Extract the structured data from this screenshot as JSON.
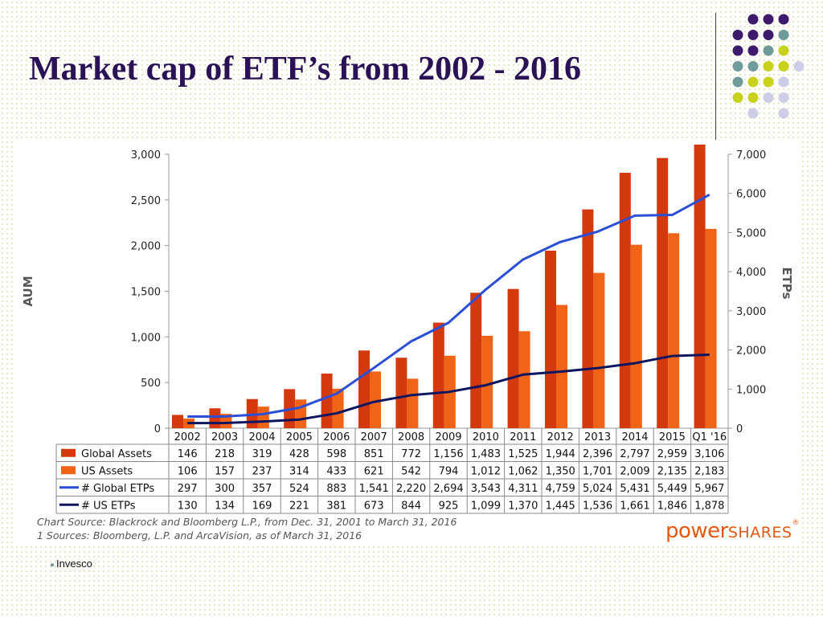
{
  "slide": {
    "title": "Market cap of  ETF’s from 2002 - 2016",
    "footer": "Invesco"
  },
  "source_lines": [
    "Chart Source: Blackrock and Bloomberg L.P., from Dec. 31, 2001 to March 31, 2016",
    "1 Sources: Bloomberg, L.P. and ArcaVision, as of March 31, 2016"
  ],
  "logo": {
    "power": "power",
    "shares": "SHARES",
    "mark": "®"
  },
  "chart_data": {
    "type": "bar",
    "categories": [
      "2002",
      "2003",
      "2004",
      "2005",
      "2006",
      "2007",
      "2008",
      "2009",
      "2010",
      "2011",
      "2012",
      "2013",
      "2014",
      "2015",
      "Q1 '16"
    ],
    "ylabel": "AUM",
    "y2label": "ETPs",
    "ylim": [
      0,
      3000
    ],
    "y2lim": [
      0,
      7000
    ],
    "yticks": [
      0,
      500,
      1000,
      1500,
      2000,
      2500,
      3000
    ],
    "y2ticks": [
      0,
      1000,
      2000,
      3000,
      4000,
      5000,
      6000,
      7000
    ],
    "grid": false,
    "legend": "data-table-below",
    "series": [
      {
        "name": "Global Assets",
        "type": "bar",
        "axis": "left",
        "color": "#d4380d",
        "values": [
          146,
          218,
          319,
          428,
          598,
          851,
          772,
          1156,
          1483,
          1525,
          1944,
          2396,
          2797,
          2959,
          3106
        ]
      },
      {
        "name": "US Assets",
        "type": "bar",
        "axis": "left",
        "color": "#f06418",
        "values": [
          106,
          157,
          237,
          314,
          433,
          621,
          542,
          794,
          1012,
          1062,
          1350,
          1701,
          2009,
          2135,
          2183
        ]
      },
      {
        "name": "# Global ETPs",
        "type": "line",
        "axis": "right",
        "color": "#2a4fd6",
        "values": [
          297,
          300,
          357,
          524,
          883,
          1541,
          2220,
          2694,
          3543,
          4311,
          4759,
          5024,
          5431,
          5449,
          5967
        ]
      },
      {
        "name": "# US ETPs",
        "type": "line",
        "axis": "right",
        "color": "#0c1660",
        "values": [
          130,
          134,
          169,
          221,
          381,
          673,
          844,
          925,
          1099,
          1370,
          1445,
          1536,
          1661,
          1846,
          1878
        ]
      }
    ]
  },
  "decor": {
    "dot_colors": {
      "purple": "#3d1a6b",
      "teal": "#6d9c9a",
      "lime": "#c8d21a",
      "lavender": "#cdcde8"
    }
  }
}
